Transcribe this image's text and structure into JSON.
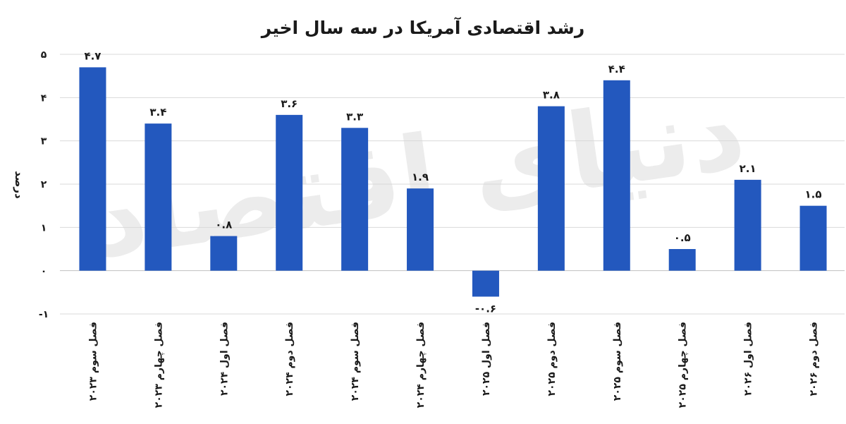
{
  "chart_data": {
    "type": "bar",
    "title": "رشد اقتصادی آمریکا در سه سال اخیر",
    "ylabel": "درصد",
    "ylim": [
      -1,
      5
    ],
    "yticks": [
      -1,
      0,
      1,
      2,
      3,
      4,
      5
    ],
    "ytick_labels": [
      "-۱",
      "۰",
      "۱",
      "۲",
      "۳",
      "۴",
      "۵"
    ],
    "grid": true,
    "bar_color": "#2358be",
    "categories": [
      "فصل سوم ۲۰۲۳",
      "فصل چهارم ۲۰۲۳",
      "فصل اول ۲۰۲۴",
      "فصل دوم ۲۰۲۴",
      "فصل سوم ۲۰۲۴",
      "فصل چهارم ۲۰۲۴",
      "فصل اول ۲۰۲۵",
      "فصل دوم ۲۰۲۵",
      "فصل سوم ۲۰۲۵",
      "فصل چهارم ۲۰۲۵",
      "فصل اول ۲۰۲۶",
      "فصل دوم ۲۰۲۶"
    ],
    "values": [
      4.7,
      3.4,
      0.8,
      3.6,
      3.3,
      1.9,
      -0.6,
      3.8,
      4.4,
      0.5,
      2.1,
      1.5
    ],
    "value_labels": [
      "۴.۷",
      "۳.۴",
      "۰.۸",
      "۳.۶",
      "۳.۳",
      "۱.۹",
      "-۰.۶",
      "۳.۸",
      "۴.۴",
      "۰.۵",
      "۲.۱",
      "۱.۵"
    ],
    "watermark": "دنیای اقتصاد"
  }
}
